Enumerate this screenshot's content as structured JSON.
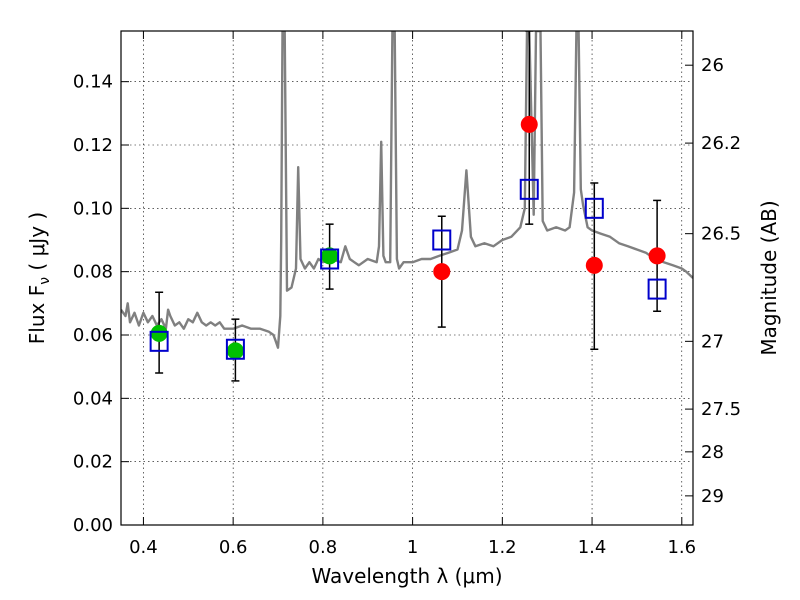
{
  "chart_data": {
    "type": "scatter",
    "title": "",
    "xlabel": "Wavelength  λ (μm)",
    "ylabel": "Flux  F",
    "ylabel_sub": "ν",
    "ylabel_unit": " ( μJy )",
    "ylabel_right": "Magnitude (AB)",
    "xlim": [
      0.35,
      1.625
    ],
    "ylim": [
      0.0,
      0.156
    ],
    "grid": true,
    "x_ticks": [
      0.4,
      0.6,
      0.8,
      1.0,
      1.2,
      1.4,
      1.6
    ],
    "x_tick_labels": [
      "0.4",
      "0.6",
      "0.8",
      "1",
      "1.2",
      "1.4",
      "1.6"
    ],
    "y_ticks": [
      0.0,
      0.02,
      0.04,
      0.06,
      0.08,
      0.1,
      0.12,
      0.14
    ],
    "y_tick_labels": [
      "0.00",
      "0.02",
      "0.04",
      "0.06",
      "0.08",
      "0.10",
      "0.12",
      "0.14"
    ],
    "right_ticks": [
      {
        "flux": 0.1452,
        "label": "26"
      },
      {
        "flux": 0.1206,
        "label": "26.2"
      },
      {
        "flux": 0.092,
        "label": "26.5"
      },
      {
        "flux": 0.058,
        "label": "27"
      },
      {
        "flux": 0.0366,
        "label": "27.5"
      },
      {
        "flux": 0.0231,
        "label": "28"
      },
      {
        "flux": 0.0092,
        "label": "29"
      }
    ],
    "series": [
      {
        "kind": "line",
        "color": "#808080",
        "points": [
          [
            0.35,
            0.068
          ],
          [
            0.36,
            0.066
          ],
          [
            0.365,
            0.07
          ],
          [
            0.37,
            0.064
          ],
          [
            0.38,
            0.067
          ],
          [
            0.39,
            0.063
          ],
          [
            0.4,
            0.067
          ],
          [
            0.41,
            0.064
          ],
          [
            0.42,
            0.066
          ],
          [
            0.43,
            0.063
          ],
          [
            0.44,
            0.065
          ],
          [
            0.45,
            0.062
          ],
          [
            0.455,
            0.068
          ],
          [
            0.46,
            0.066
          ],
          [
            0.47,
            0.063
          ],
          [
            0.48,
            0.064
          ],
          [
            0.49,
            0.062
          ],
          [
            0.5,
            0.065
          ],
          [
            0.51,
            0.064
          ],
          [
            0.52,
            0.067
          ],
          [
            0.53,
            0.064
          ],
          [
            0.54,
            0.063
          ],
          [
            0.55,
            0.064
          ],
          [
            0.56,
            0.063
          ],
          [
            0.57,
            0.064
          ],
          [
            0.58,
            0.062
          ],
          [
            0.6,
            0.062
          ],
          [
            0.62,
            0.063
          ],
          [
            0.64,
            0.062
          ],
          [
            0.66,
            0.062
          ],
          [
            0.68,
            0.061
          ],
          [
            0.69,
            0.06
          ],
          [
            0.695,
            0.058
          ],
          [
            0.7,
            0.056
          ],
          [
            0.705,
            0.066
          ],
          [
            0.707,
            0.09
          ],
          [
            0.71,
            0.156
          ],
          [
            0.715,
            0.156
          ],
          [
            0.72,
            0.074
          ],
          [
            0.73,
            0.075
          ],
          [
            0.74,
            0.081
          ],
          [
            0.745,
            0.113
          ],
          [
            0.75,
            0.084
          ],
          [
            0.76,
            0.081
          ],
          [
            0.77,
            0.083
          ],
          [
            0.78,
            0.081
          ],
          [
            0.79,
            0.084
          ],
          [
            0.8,
            0.083
          ],
          [
            0.82,
            0.084
          ],
          [
            0.84,
            0.083
          ],
          [
            0.85,
            0.088
          ],
          [
            0.86,
            0.084
          ],
          [
            0.87,
            0.083
          ],
          [
            0.88,
            0.082
          ],
          [
            0.9,
            0.084
          ],
          [
            0.92,
            0.083
          ],
          [
            0.925,
            0.088
          ],
          [
            0.93,
            0.121
          ],
          [
            0.935,
            0.085
          ],
          [
            0.94,
            0.083
          ],
          [
            0.95,
            0.083
          ],
          [
            0.955,
            0.156
          ],
          [
            0.96,
            0.156
          ],
          [
            0.965,
            0.084
          ],
          [
            0.97,
            0.081
          ],
          [
            0.98,
            0.083
          ],
          [
            1.0,
            0.083
          ],
          [
            1.02,
            0.084
          ],
          [
            1.04,
            0.084
          ],
          [
            1.06,
            0.085
          ],
          [
            1.08,
            0.086
          ],
          [
            1.1,
            0.087
          ],
          [
            1.11,
            0.093
          ],
          [
            1.12,
            0.112
          ],
          [
            1.13,
            0.091
          ],
          [
            1.14,
            0.088
          ],
          [
            1.16,
            0.089
          ],
          [
            1.18,
            0.088
          ],
          [
            1.2,
            0.09
          ],
          [
            1.22,
            0.091
          ],
          [
            1.24,
            0.094
          ],
          [
            1.25,
            0.1
          ],
          [
            1.255,
            0.156
          ],
          [
            1.26,
            0.156
          ],
          [
            1.27,
            0.098
          ],
          [
            1.275,
            0.156
          ],
          [
            1.285,
            0.156
          ],
          [
            1.29,
            0.096
          ],
          [
            1.3,
            0.093
          ],
          [
            1.32,
            0.094
          ],
          [
            1.34,
            0.093
          ],
          [
            1.35,
            0.094
          ],
          [
            1.36,
            0.105
          ],
          [
            1.365,
            0.156
          ],
          [
            1.37,
            0.156
          ],
          [
            1.375,
            0.106
          ],
          [
            1.38,
            0.101
          ],
          [
            1.39,
            0.094
          ],
          [
            1.4,
            0.093
          ],
          [
            1.42,
            0.092
          ],
          [
            1.44,
            0.091
          ],
          [
            1.46,
            0.089
          ],
          [
            1.48,
            0.088
          ],
          [
            1.5,
            0.087
          ],
          [
            1.52,
            0.086
          ],
          [
            1.54,
            0.084
          ],
          [
            1.56,
            0.083
          ],
          [
            1.58,
            0.082
          ],
          [
            1.6,
            0.081
          ],
          [
            1.61,
            0.08
          ],
          [
            1.625,
            0.078
          ]
        ]
      },
      {
        "kind": "points",
        "marker": "circle",
        "color": "#00c000",
        "points": [
          {
            "x": 0.435,
            "y": 0.0605,
            "yerr": [
              0.048,
              0.0735
            ]
          },
          {
            "x": 0.605,
            "y": 0.055,
            "yerr": [
              0.0455,
              0.065
            ]
          },
          {
            "x": 0.815,
            "y": 0.085,
            "yerr": [
              0.0745,
              0.095
            ]
          }
        ]
      },
      {
        "kind": "points",
        "marker": "circle",
        "color": "#ff0000",
        "points": [
          {
            "x": 1.065,
            "y": 0.08,
            "yerr": [
              0.0625,
              0.0975
            ]
          },
          {
            "x": 1.26,
            "y": 0.1265,
            "yerr": [
              0.095,
              0.156
            ]
          },
          {
            "x": 1.405,
            "y": 0.082,
            "yerr": [
              0.0555,
              0.108
            ]
          },
          {
            "x": 1.545,
            "y": 0.085,
            "yerr": [
              0.0675,
              0.1025
            ]
          }
        ]
      },
      {
        "kind": "points",
        "marker": "square",
        "color": "#0000cc",
        "points": [
          {
            "x": 0.435,
            "y": 0.058
          },
          {
            "x": 0.605,
            "y": 0.0555
          },
          {
            "x": 0.815,
            "y": 0.084
          },
          {
            "x": 1.065,
            "y": 0.09
          },
          {
            "x": 1.26,
            "y": 0.106
          },
          {
            "x": 1.405,
            "y": 0.1
          },
          {
            "x": 1.545,
            "y": 0.0745
          }
        ]
      }
    ]
  }
}
